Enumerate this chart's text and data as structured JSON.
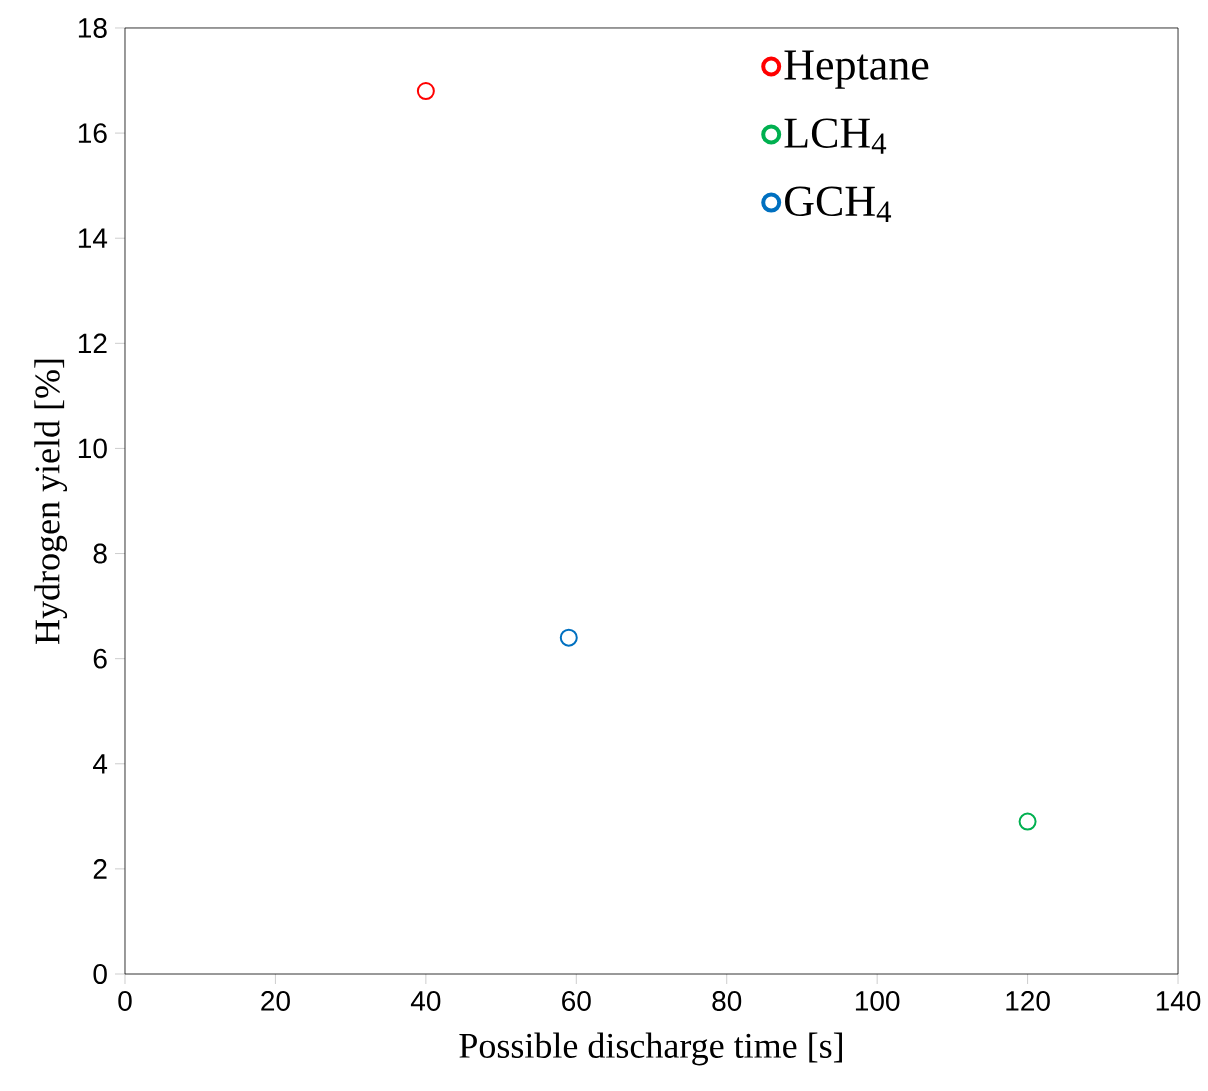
{
  "chart_data": {
    "type": "scatter",
    "xlabel": "Possible discharge time [s]",
    "ylabel": "Hydrogen yield [%]",
    "xlim": [
      0,
      140
    ],
    "xticks": [
      0,
      20,
      40,
      60,
      80,
      100,
      120,
      140
    ],
    "ylim": [
      0,
      18
    ],
    "yticks": [
      0,
      2,
      4,
      6,
      8,
      10,
      12,
      14,
      16,
      18
    ],
    "grid": false,
    "legend": "top right",
    "marker": "circle",
    "series": [
      {
        "name": "Heptane",
        "color": "#ff0000",
        "x": [
          40
        ],
        "values": [
          16.8
        ]
      },
      {
        "name": "LCH$_{4}$",
        "color": "#00b050",
        "x": [
          120
        ],
        "values": [
          2.9
        ]
      },
      {
        "name": "GCH$_{4}$",
        "color": "#0070c0",
        "x": [
          59
        ],
        "values": [
          6.4
        ]
      }
    ]
  }
}
